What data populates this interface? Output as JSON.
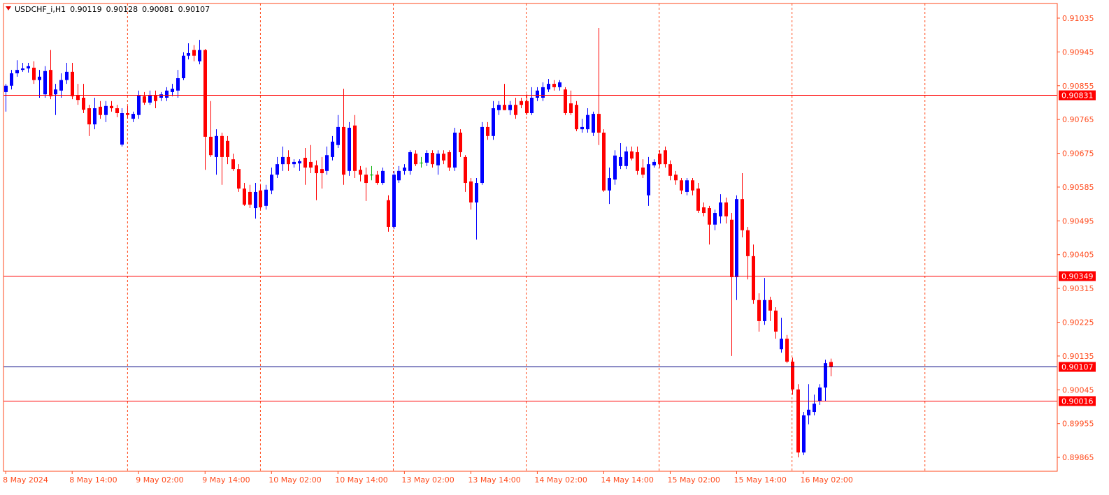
{
  "chart_data": {
    "type": "candlestick",
    "title": "USDCHF_i,H1",
    "up_color": "#0000ff",
    "down_color": "#ff0000",
    "doji_color": "#00b000",
    "axis_color": "#ff4a1c",
    "xlim": [
      -0.4,
      189.9
    ],
    "xticks": [
      {
        "value": 0,
        "label": "8 May 2024"
      },
      {
        "value": 12,
        "label": "8 May 14:00"
      },
      {
        "value": 24,
        "label": "9 May 02:00"
      },
      {
        "value": 36,
        "label": "9 May 14:00"
      },
      {
        "value": 48,
        "label": "10 May 02:00"
      },
      {
        "value": 60,
        "label": "10 May 14:00"
      },
      {
        "value": 72,
        "label": "13 May 02:00"
      },
      {
        "value": 84,
        "label": "13 May 14:00"
      },
      {
        "value": 96,
        "label": "14 May 02:00"
      },
      {
        "value": 108,
        "label": "14 May 14:00"
      },
      {
        "value": 120,
        "label": "15 May 02:00"
      },
      {
        "value": 132,
        "label": "15 May 14:00"
      },
      {
        "value": 144,
        "label": "16 May 02:00"
      }
    ],
    "period_separators": [
      22,
      46,
      70,
      94,
      118,
      142,
      166
    ],
    "ylim": [
      0.89828,
      0.91074
    ],
    "yticks": [
      0.91035,
      0.90945,
      0.90855,
      0.90765,
      0.90675,
      0.90585,
      0.90495,
      0.90405,
      0.90315,
      0.90225,
      0.90135,
      0.90045,
      0.89955,
      0.89865
    ],
    "hlines": [
      {
        "value": 0.90831,
        "color": "#ff0000"
      },
      {
        "value": 0.90349,
        "color": "#ff0000"
      },
      {
        "value": 0.90107,
        "color": "#000080"
      },
      {
        "value": 0.90016,
        "color": "#ff0000"
      }
    ],
    "open": [
      0.90838,
      0.90855,
      0.90888,
      0.90897,
      0.90901,
      0.90903,
      0.9087,
      0.90832,
      0.90897,
      0.90832,
      0.90842,
      0.9087,
      0.90892,
      0.90829,
      0.90823,
      0.90795,
      0.90752,
      0.90799,
      0.90777,
      0.90801,
      0.90795,
      0.90698,
      0.90782,
      0.90767,
      0.90777,
      0.90827,
      0.9081,
      0.90829,
      0.90823,
      0.90823,
      0.90838,
      0.90842,
      0.90875,
      0.90935,
      0.9095,
      0.9092,
      0.9095,
      0.90719,
      0.90665,
      0.90721,
      0.90708,
      0.90659,
      0.90633,
      0.90581,
      0.90572,
      0.90529,
      0.90576,
      0.90535,
      0.90576,
      0.90618,
      0.90646,
      0.90665,
      0.90646,
      0.90648,
      0.90663,
      0.90652,
      0.90643,
      0.90633,
      0.90628,
      0.90665,
      0.90697,
      0.90745,
      0.90628,
      0.90749,
      0.90631,
      0.90618,
      0.90618,
      0.90618,
      0.90596,
      0.9055,
      0.90479,
      0.90603,
      0.90628,
      0.90628,
      0.90674,
      0.9065,
      0.9065,
      0.90676,
      0.90643,
      0.90674,
      0.90678,
      0.90637,
      0.9073,
      0.90665,
      0.906,
      0.90544,
      0.90596,
      0.90745,
      0.90721,
      0.9079,
      0.90804,
      0.9079,
      0.90804,
      0.90814,
      0.90814,
      0.90782,
      0.90823,
      0.90823,
      0.90845,
      0.9086,
      0.90851,
      0.90845,
      0.90808,
      0.90804,
      0.90739,
      0.90739,
      0.9073,
      0.9078,
      0.9073,
      0.90576,
      0.90605,
      0.90641,
      0.90641,
      0.9068,
      0.90678,
      0.90637,
      0.90563,
      0.90643,
      0.90674,
      0.90683,
      0.90646,
      0.90618,
      0.90603,
      0.90572,
      0.90603,
      0.90581,
      0.90531,
      0.90529,
      0.90485,
      0.90507,
      0.90544,
      0.90498,
      0.90345,
      0.90553,
      0.9047,
      0.90401,
      0.90284,
      0.90228,
      0.90284,
      0.90256,
      0.90153,
      0.90181,
      0.9012,
      0.90046,
      0.89878,
      0.89977,
      0.89986,
      0.90014,
      0.90051,
      0.90119
    ],
    "high": [
      0.9086,
      0.90897,
      0.90923,
      0.90916,
      0.90916,
      0.9092,
      0.90897,
      0.90907,
      0.9095,
      0.9086,
      0.90888,
      0.90916,
      0.90916,
      0.9086,
      0.9086,
      0.90804,
      0.90823,
      0.90814,
      0.90814,
      0.90814,
      0.90804,
      0.90795,
      0.90801,
      0.90786,
      0.90842,
      0.90838,
      0.90842,
      0.90842,
      0.90838,
      0.90851,
      0.9086,
      0.90897,
      0.90944,
      0.90968,
      0.90963,
      0.90977,
      0.90953,
      0.90814,
      0.90739,
      0.9073,
      0.90721,
      0.90674,
      0.90646,
      0.90596,
      0.90591,
      0.90596,
      0.90591,
      0.90591,
      0.90637,
      0.90665,
      0.90693,
      0.90683,
      0.90659,
      0.90659,
      0.90689,
      0.90697,
      0.90656,
      0.90665,
      0.90693,
      0.90721,
      0.90777,
      0.90847,
      0.90758,
      0.90777,
      0.90641,
      0.90637,
      0.90641,
      0.90628,
      0.90637,
      0.90563,
      0.90628,
      0.90641,
      0.90646,
      0.90683,
      0.90683,
      0.90665,
      0.90683,
      0.90683,
      0.90683,
      0.90683,
      0.90683,
      0.90743,
      0.90739,
      0.9067,
      0.90609,
      0.90609,
      0.90758,
      0.90758,
      0.90814,
      0.90814,
      0.9086,
      0.90814,
      0.90823,
      0.90823,
      0.90832,
      0.90851,
      0.90851,
      0.90864,
      0.90873,
      0.9087,
      0.9087,
      0.90851,
      0.90842,
      0.90814,
      0.90767,
      0.90795,
      0.90786,
      0.91009,
      0.90739,
      0.90637,
      0.90683,
      0.90702,
      0.90693,
      0.90693,
      0.90693,
      0.90659,
      0.90665,
      0.90659,
      0.90683,
      0.90693,
      0.90656,
      0.90628,
      0.90609,
      0.90609,
      0.90609,
      0.90596,
      0.90544,
      0.90535,
      0.90525,
      0.90566,
      0.90557,
      0.90516,
      0.90563,
      0.90622,
      0.90479,
      0.90432,
      0.90302,
      0.90343,
      0.90293,
      0.90265,
      0.90237,
      0.90191,
      0.90131,
      0.9006,
      0.89986,
      0.9006,
      0.90032,
      0.9006,
      0.90125,
      0.90128
    ],
    "low": [
      0.90786,
      0.90845,
      0.90879,
      0.90892,
      0.9089,
      0.9086,
      0.90823,
      0.90823,
      0.90819,
      0.90777,
      0.90823,
      0.9086,
      0.90819,
      0.90804,
      0.90782,
      0.90721,
      0.90739,
      0.90767,
      0.90758,
      0.90786,
      0.90771,
      0.90693,
      0.90767,
      0.90758,
      0.90767,
      0.90804,
      0.90804,
      0.90795,
      0.90814,
      0.90814,
      0.90827,
      0.90823,
      0.9087,
      0.90925,
      0.9092,
      0.90912,
      0.90631,
      0.90665,
      0.90618,
      0.90591,
      0.90646,
      0.90628,
      0.90572,
      0.90535,
      0.90529,
      0.90501,
      0.90525,
      0.90525,
      0.90566,
      0.90609,
      0.90628,
      0.90628,
      0.90637,
      0.90628,
      0.90591,
      0.90622,
      0.9055,
      0.90581,
      0.90618,
      0.90656,
      0.90689,
      0.90591,
      0.90615,
      0.90609,
      0.906,
      0.90548,
      0.90603,
      0.90591,
      0.90591,
      0.90466,
      0.90473,
      0.90596,
      0.90618,
      0.90618,
      0.90641,
      0.90637,
      0.90641,
      0.90637,
      0.90618,
      0.90646,
      0.90628,
      0.90628,
      0.90665,
      0.90572,
      0.90525,
      0.90445,
      0.90591,
      0.90711,
      0.90711,
      0.90777,
      0.9079,
      0.90777,
      0.90767,
      0.90795,
      0.90777,
      0.90777,
      0.90814,
      0.90814,
      0.90838,
      0.90842,
      0.90842,
      0.90777,
      0.90777,
      0.90734,
      0.9073,
      0.9073,
      0.90721,
      0.90697,
      0.90572,
      0.9054,
      0.90591,
      0.90633,
      0.90633,
      0.90656,
      0.90618,
      0.90609,
      0.90535,
      0.90637,
      0.90637,
      0.90637,
      0.90603,
      0.90591,
      0.90566,
      0.90563,
      0.90563,
      0.90516,
      0.90507,
      0.90432,
      0.9047,
      0.90488,
      0.90488,
      0.90135,
      0.90284,
      0.90451,
      0.90339,
      0.90274,
      0.902,
      0.90218,
      0.90228,
      0.90181,
      0.90144,
      0.90116,
      0.90032,
      0.89865,
      0.89871,
      0.89953,
      0.89977,
      0.90005,
      0.90014,
      0.90081
    ],
    "close": [
      0.90855,
      0.90888,
      0.90897,
      0.90901,
      0.90907,
      0.9087,
      0.90879,
      0.90894,
      0.90827,
      0.90845,
      0.9087,
      0.90892,
      0.90827,
      0.90817,
      0.90791,
      0.90752,
      0.90795,
      0.90777,
      0.90801,
      0.90795,
      0.90782,
      0.90782,
      0.90777,
      0.9078,
      0.90829,
      0.9081,
      0.90829,
      0.90814,
      0.90832,
      0.90842,
      0.90847,
      0.90875,
      0.90935,
      0.90942,
      0.90935,
      0.9095,
      0.90719,
      0.9067,
      0.90721,
      0.90665,
      0.90665,
      0.90633,
      0.90581,
      0.90538,
      0.90538,
      0.90572,
      0.90531,
      0.90578,
      0.90618,
      0.90646,
      0.90665,
      0.90646,
      0.90652,
      0.90654,
      0.90637,
      0.90637,
      0.90622,
      0.90622,
      0.9067,
      0.90706,
      0.90745,
      0.90618,
      0.90743,
      0.90628,
      0.90618,
      0.90596,
      0.90618,
      0.90596,
      0.90628,
      0.90479,
      0.90618,
      0.90628,
      0.90637,
      0.90678,
      0.90646,
      0.9065,
      0.90676,
      0.90646,
      0.90674,
      0.90656,
      0.90637,
      0.9073,
      0.90678,
      0.90596,
      0.90544,
      0.90596,
      0.90745,
      0.90721,
      0.90795,
      0.90804,
      0.9079,
      0.90804,
      0.90777,
      0.90804,
      0.90782,
      0.90823,
      0.90842,
      0.90851,
      0.9086,
      0.90851,
      0.90864,
      0.90782,
      0.90782,
      0.90739,
      0.90745,
      0.90777,
      0.9078,
      0.9073,
      0.90576,
      0.90609,
      0.90669,
      0.90665,
      0.9068,
      0.90661,
      0.90628,
      0.90618,
      0.90646,
      0.90652,
      0.90646,
      0.90646,
      0.90615,
      0.90603,
      0.90576,
      0.90603,
      0.90576,
      0.90522,
      0.90516,
      0.90485,
      0.90516,
      0.90544,
      0.90507,
      0.90345,
      0.90553,
      0.9047,
      0.90401,
      0.90284,
      0.90228,
      0.90284,
      0.90256,
      0.902,
      0.90181,
      0.9012,
      0.90046,
      0.89878,
      0.89977,
      0.89992,
      0.90008,
      0.90051,
      0.90116,
      0.90107
    ]
  }
}
